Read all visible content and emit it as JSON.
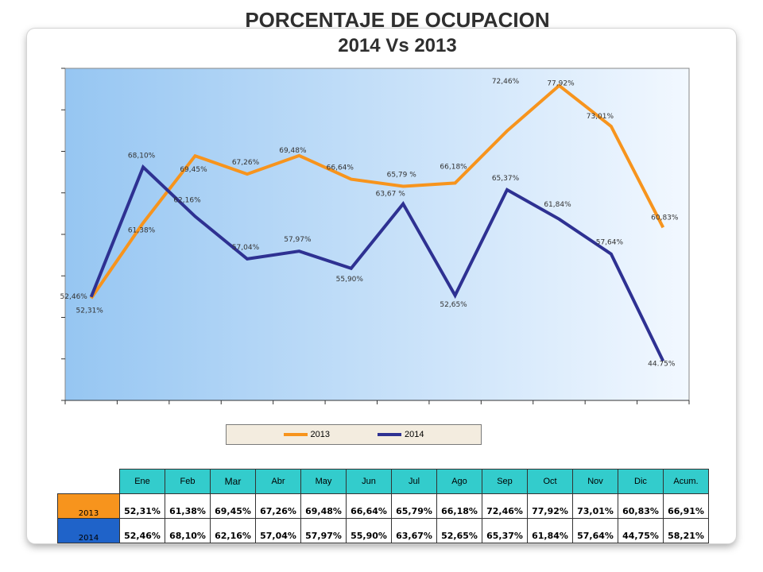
{
  "header": {
    "title": "PORCENTAJE DE OCUPACION",
    "subtitle": "2014 Vs 2013"
  },
  "chart_data": {
    "type": "line",
    "categories": [
      "Ene",
      "Feb",
      "Mar",
      "Abr",
      "May",
      "Jun",
      "Jul",
      "Ago",
      "Sep",
      "Oct",
      "Nov",
      "Dic"
    ],
    "ylim": [
      40,
      80
    ],
    "grid": false,
    "legend_position": "bottom",
    "series": [
      {
        "name": "2013",
        "color": "#f7941d",
        "values": [
          52.31,
          61.38,
          69.45,
          67.26,
          69.48,
          66.64,
          65.79,
          66.18,
          72.46,
          77.92,
          73.01,
          60.83
        ],
        "labels": [
          "52,31%",
          "61,38%",
          "69,45%",
          "67,26%",
          "69,48%",
          "66,64%",
          "65,79 %",
          "66,18%",
          "72,46%",
          "77,92%",
          "73,01%",
          "60,83%"
        ]
      },
      {
        "name": "2014",
        "color": "#2e3192",
        "values": [
          52.46,
          68.1,
          62.16,
          57.04,
          57.97,
          55.9,
          63.67,
          52.65,
          65.37,
          61.84,
          57.64,
          44.75
        ],
        "labels": [
          "52,46%",
          "68,10%",
          "62,16%",
          "57,04%",
          "57,97%",
          "55,90%",
          "63,67 %",
          "52,65%",
          "65,37%",
          "61,84%",
          "57,64%",
          "44.75%"
        ]
      }
    ]
  },
  "legend": {
    "items": [
      {
        "label": "2013",
        "color": "#f7941d"
      },
      {
        "label": "2014",
        "color": "#2e3192"
      }
    ]
  },
  "table": {
    "headers": [
      "Ene",
      "Feb",
      "Mar",
      "Abr",
      "May",
      "Jun",
      "Jul",
      "Ago",
      "Sep",
      "Oct",
      "Nov",
      "Dic",
      "Acum."
    ],
    "rows": [
      {
        "label": "2013",
        "label_bg": "#f7941d",
        "label_color": "#000000",
        "values": [
          "52,31%",
          "61,38%",
          "69,45%",
          "67,26%",
          "69,48%",
          "66,64%",
          "65,79%",
          "66,18%",
          "72,46%",
          "77,92%",
          "73,01%",
          "60,83%",
          "66,91%"
        ]
      },
      {
        "label": "2014",
        "label_bg": "#1f63c9",
        "label_color": "#000000",
        "values": [
          "52,46%",
          "68,10%",
          "62,16%",
          "57,04%",
          "57,97%",
          "55,90%",
          "63,67%",
          "52,65%",
          "65,37%",
          "61,84%",
          "57,64%",
          "44,75%",
          "58,21%"
        ]
      }
    ]
  },
  "colors": {
    "table_header": "#33cccc",
    "plot_gradient_left": "#96c6f2",
    "plot_gradient_right": "#f2f8ff"
  }
}
